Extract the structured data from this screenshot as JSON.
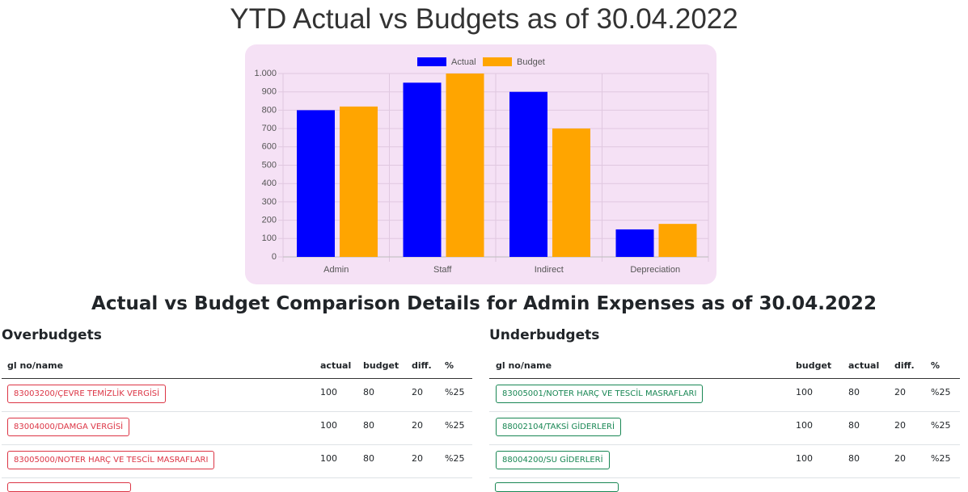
{
  "title": "YTD Actual vs Budgets as of 30.04.2022",
  "chart_data": {
    "type": "bar",
    "categories": [
      "Admin",
      "Staff",
      "Indirect",
      "Depreciation"
    ],
    "series": [
      {
        "name": "Actual",
        "color": "#0000ff",
        "values": [
          800,
          950,
          900,
          150
        ]
      },
      {
        "name": "Budget",
        "color": "#ffa500",
        "values": [
          820,
          1000,
          700,
          180
        ]
      }
    ],
    "ylim": [
      0,
      1000
    ],
    "yticks": [
      0,
      100,
      200,
      300,
      400,
      500,
      600,
      700,
      800,
      900,
      {
        "value": 1000,
        "label": "1.000"
      }
    ],
    "grid": true,
    "legend": "top"
  },
  "details_title": "Actual vs Budget Comparison Details for Admin Expenses as of 30.04.2022",
  "tables": [
    {
      "title": "Overbudgets",
      "columns": [
        "gl no/name",
        "actual",
        "budget",
        "diff.",
        "%"
      ],
      "rows": [
        [
          "83003200/ÇEVRE TEMİZLİK VERGİSİ",
          100,
          80,
          20,
          "%25"
        ],
        [
          "83004000/DAMGA VERGİSİ",
          100,
          80,
          20,
          "%25"
        ],
        [
          "83005000/NOTER HARÇ VE TESCİL MASRAFLARI",
          100,
          80,
          20,
          "%25"
        ]
      ]
    },
    {
      "title": "Underbudgets",
      "columns": [
        "gl no/name",
        "budget",
        "actual",
        "diff.",
        "%"
      ],
      "rows": [
        [
          "83005001/NOTER HARÇ VE TESCİL MASRAFLARI",
          100,
          80,
          20,
          "%25"
        ],
        [
          "88002104/TAKSİ GİDERLERİ",
          100,
          80,
          20,
          "%25"
        ],
        [
          "88004200/SU GİDERLERİ",
          100,
          80,
          20,
          "%25"
        ]
      ]
    }
  ]
}
